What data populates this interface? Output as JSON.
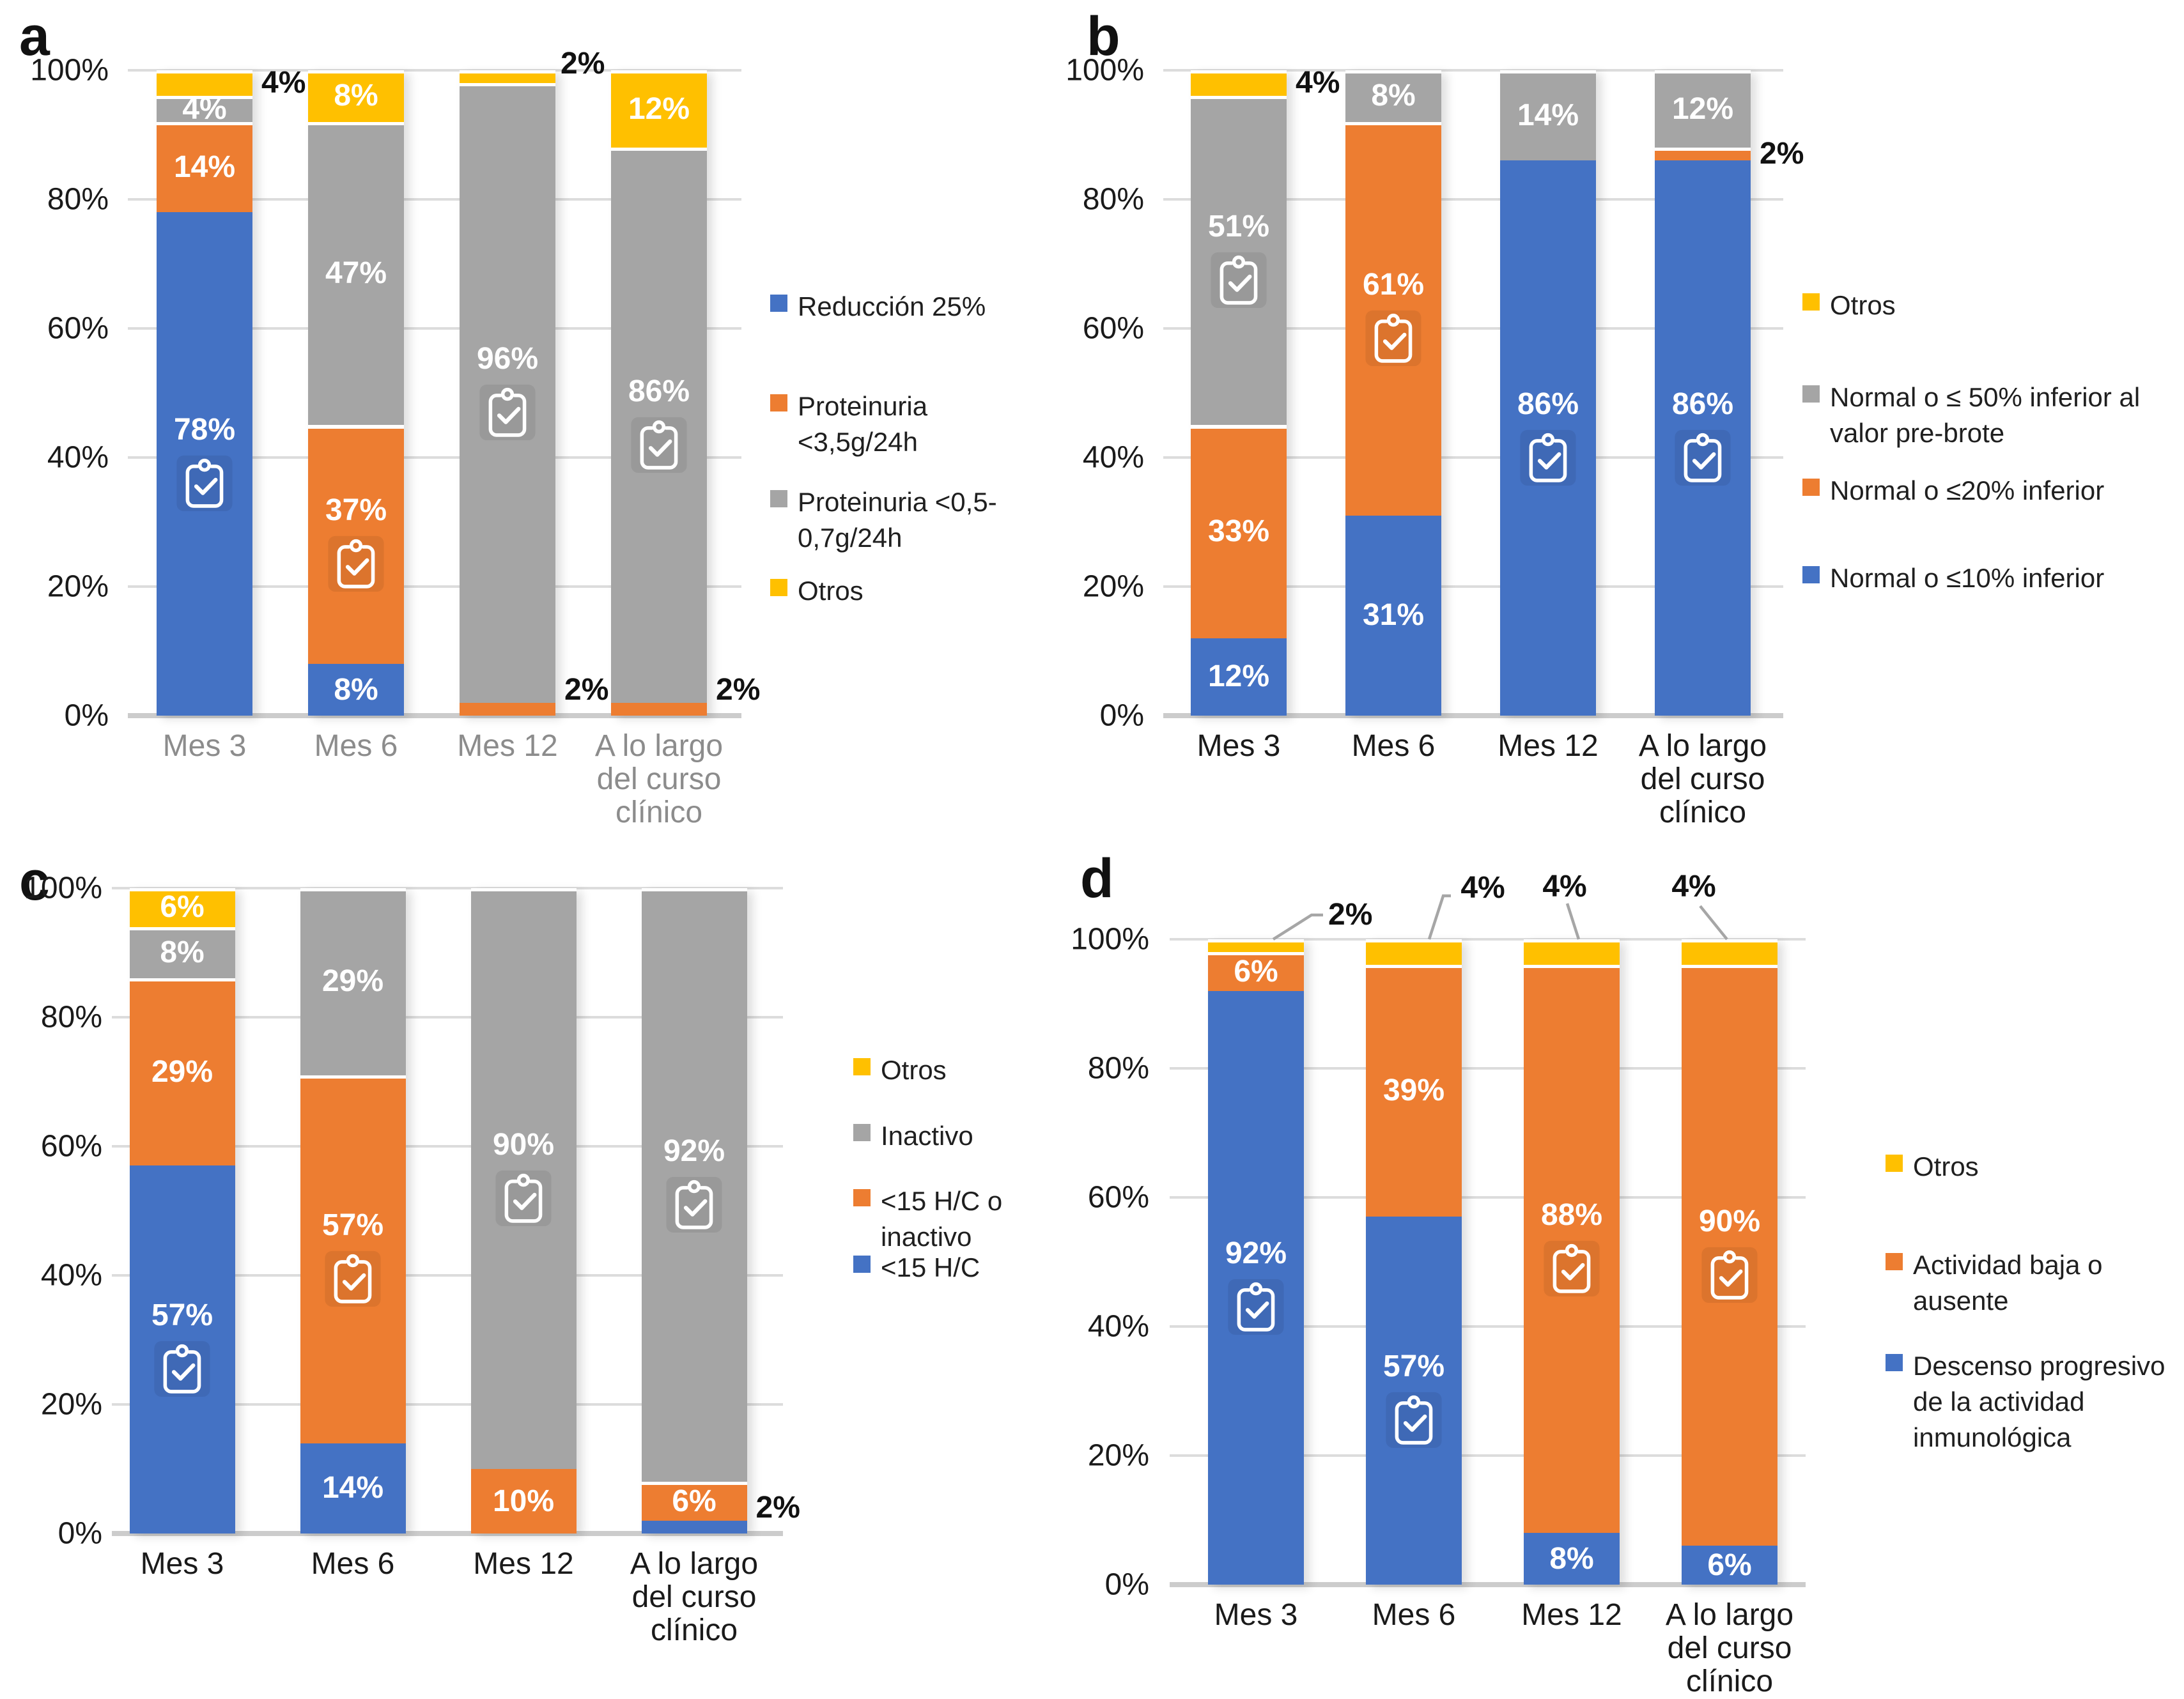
{
  "colors": {
    "blue": "#4472C4",
    "orange": "#ED7D31",
    "gray": "#A5A5A5",
    "yellow": "#FFC000",
    "grid": "#DCDCDC",
    "axis_text": "#1A1A1A",
    "x_text_muted": "#8C8C8C",
    "leader_line": "#A6A6A6",
    "data_label_inside": "#FFFFFF",
    "data_label_outside": "#111111"
  },
  "chart_data": [
    {
      "panel": "a",
      "type": "bar",
      "subtype": "stacked-100-percent",
      "title": "",
      "xlabel": "",
      "ylabel": "",
      "ylim": [
        0,
        100
      ],
      "grid": true,
      "y_ticks": [
        "100%",
        "80%",
        "60%",
        "40%",
        "20%",
        "0%"
      ],
      "categories": [
        "Mes 3",
        "Mes 6",
        "Mes 12",
        "A lo largo del curso clínico"
      ],
      "category_lines": [
        [
          "Mes 3"
        ],
        [
          "Mes 6"
        ],
        [
          "Mes 12"
        ],
        [
          "A lo largo",
          "del curso",
          "clínico"
        ]
      ],
      "x_label_style": "muted",
      "series": [
        {
          "name": "Reducción 25%",
          "color_key": "blue",
          "values": [
            78,
            8,
            0,
            0
          ],
          "labels": [
            "78%",
            "8%",
            "",
            ""
          ],
          "label_modes": [
            "inside-icon",
            "inside",
            null,
            null
          ]
        },
        {
          "name": "Proteinuria <3,5g/24h",
          "color_key": "orange",
          "values": [
            14,
            37,
            2,
            2
          ],
          "labels": [
            "14%",
            "37%",
            "2%",
            "2%"
          ],
          "label_modes": [
            "inside",
            "inside-icon",
            "right",
            "right"
          ]
        },
        {
          "name": "Proteinuria <0,5-0,7g/24h",
          "color_key": "gray",
          "values": [
            4,
            47,
            96,
            86
          ],
          "labels": [
            "4%",
            "47%",
            "96%",
            "86%"
          ],
          "label_modes": [
            "inside",
            "inside",
            "inside-icon",
            "inside-icon"
          ]
        },
        {
          "name": "Otros",
          "color_key": "yellow",
          "values": [
            4,
            8,
            2,
            12
          ],
          "labels": [
            "4%",
            "8%",
            "2%",
            "12%"
          ],
          "label_modes": [
            "right",
            "inside",
            "top",
            "inside"
          ]
        }
      ],
      "legend": {
        "position": "right",
        "entries": [
          {
            "color_key": "blue",
            "lines": [
              "Reducción 25%"
            ]
          },
          {
            "color_key": "orange",
            "lines": [
              "Proteinuria",
              "<3,5g/24h"
            ]
          },
          {
            "color_key": "gray",
            "lines": [
              "Proteinuria <0,5-",
              "0,7g/24h"
            ]
          },
          {
            "color_key": "yellow",
            "lines": [
              "Otros"
            ]
          }
        ]
      }
    },
    {
      "panel": "b",
      "type": "bar",
      "subtype": "stacked-100-percent",
      "title": "",
      "xlabel": "",
      "ylabel": "",
      "ylim": [
        0,
        100
      ],
      "grid": true,
      "y_ticks": [
        "100%",
        "80%",
        "60%",
        "40%",
        "20%",
        "0%"
      ],
      "categories": [
        "Mes 3",
        "Mes 6",
        "Mes 12",
        "A lo largo del curso clínico"
      ],
      "category_lines": [
        [
          "Mes 3"
        ],
        [
          "Mes 6"
        ],
        [
          "Mes 12"
        ],
        [
          "A lo largo",
          "del curso",
          "clínico"
        ]
      ],
      "x_label_style": "dark",
      "series": [
        {
          "name": "Normal o ≤10% inferior",
          "color_key": "blue",
          "values": [
            12,
            31,
            86,
            86
          ],
          "labels": [
            "12%",
            "31%",
            "86%",
            "86%"
          ],
          "label_modes": [
            "inside",
            "inside",
            "inside-icon",
            "inside-icon"
          ]
        },
        {
          "name": "Normal o ≤20% inferior",
          "color_key": "orange",
          "values": [
            33,
            61,
            0,
            2
          ],
          "labels": [
            "33%",
            "61%",
            "",
            "2%"
          ],
          "label_modes": [
            "inside",
            "inside-icon",
            null,
            "right"
          ]
        },
        {
          "name": "Normal o ≤ 50% inferior al valor pre-brote",
          "color_key": "gray",
          "values": [
            51,
            8,
            14,
            12
          ],
          "labels": [
            "51%",
            "8%",
            "14%",
            "12%"
          ],
          "label_modes": [
            "inside-icon",
            "inside",
            "inside",
            "inside"
          ]
        },
        {
          "name": "Otros",
          "color_key": "yellow",
          "values": [
            4,
            0,
            0,
            0
          ],
          "labels": [
            "4%",
            "",
            "",
            ""
          ],
          "label_modes": [
            "right",
            null,
            null,
            null
          ]
        }
      ],
      "legend": {
        "position": "right",
        "entries": [
          {
            "color_key": "yellow",
            "lines": [
              "Otros"
            ]
          },
          {
            "color_key": "gray",
            "lines": [
              "Normal o ≤ 50% inferior al",
              "valor pre-brote"
            ]
          },
          {
            "color_key": "orange",
            "lines": [
              "Normal o ≤20% inferior"
            ]
          },
          {
            "color_key": "blue",
            "lines": [
              "Normal o ≤10% inferior"
            ]
          }
        ]
      }
    },
    {
      "panel": "c",
      "type": "bar",
      "subtype": "stacked-100-percent",
      "title": "",
      "xlabel": "",
      "ylabel": "",
      "ylim": [
        0,
        100
      ],
      "grid": true,
      "y_ticks": [
        "100%",
        "80%",
        "60%",
        "40%",
        "20%",
        "0%"
      ],
      "categories": [
        "Mes 3",
        "Mes 6",
        "Mes 12",
        "A lo largo del curso clínico"
      ],
      "category_lines": [
        [
          "Mes 3"
        ],
        [
          "Mes 6"
        ],
        [
          "Mes 12"
        ],
        [
          "A lo largo",
          "del curso",
          "clínico"
        ]
      ],
      "x_label_style": "dark",
      "series": [
        {
          "name": "<15 H/C",
          "color_key": "blue",
          "values": [
            57,
            14,
            0,
            2
          ],
          "labels": [
            "57%",
            "14%",
            "",
            "2%"
          ],
          "label_modes": [
            "inside-icon",
            "inside",
            null,
            "right"
          ]
        },
        {
          "name": "<15 H/C o inactivo",
          "color_key": "orange",
          "values": [
            29,
            57,
            10,
            6
          ],
          "labels": [
            "29%",
            "57%",
            "10%",
            "6%"
          ],
          "label_modes": [
            "inside",
            "inside-icon",
            "inside",
            "inside"
          ]
        },
        {
          "name": "Inactivo",
          "color_key": "gray",
          "values": [
            8,
            29,
            90,
            92
          ],
          "labels": [
            "8%",
            "29%",
            "90%",
            "92%"
          ],
          "label_modes": [
            "inside",
            "inside",
            "inside-icon",
            "inside-icon"
          ]
        },
        {
          "name": "Otros",
          "color_key": "yellow",
          "values": [
            6,
            0,
            0,
            0
          ],
          "labels": [
            "6%",
            "",
            "",
            ""
          ],
          "label_modes": [
            "inside",
            null,
            null,
            null
          ]
        }
      ],
      "legend": {
        "position": "right",
        "entries": [
          {
            "color_key": "yellow",
            "lines": [
              "Otros"
            ]
          },
          {
            "color_key": "gray",
            "lines": [
              "Inactivo"
            ]
          },
          {
            "color_key": "orange",
            "lines": [
              "<15 H/C o",
              "inactivo"
            ]
          },
          {
            "color_key": "blue",
            "lines": [
              "<15 H/C"
            ]
          }
        ]
      }
    },
    {
      "panel": "d",
      "type": "bar",
      "subtype": "stacked-100-percent",
      "title": "",
      "xlabel": "",
      "ylabel": "",
      "ylim": [
        0,
        100
      ],
      "grid": true,
      "y_ticks": [
        "100%",
        "80%",
        "60%",
        "40%",
        "20%",
        "0%"
      ],
      "categories": [
        "Mes 3",
        "Mes 6",
        "Mes 12",
        "A lo largo del curso clínico"
      ],
      "category_lines": [
        [
          "Mes 3"
        ],
        [
          "Mes 6"
        ],
        [
          "Mes 12"
        ],
        [
          "A lo largo",
          "del curso",
          "clínico"
        ]
      ],
      "x_label_style": "dark",
      "series": [
        {
          "name": "Descenso progresivo de la actividad inmunológica",
          "color_key": "blue",
          "values": [
            92,
            57,
            8,
            6
          ],
          "labels": [
            "92%",
            "57%",
            "8%",
            "6%"
          ],
          "label_modes": [
            "inside-icon",
            "inside-icon",
            "inside",
            "inside"
          ]
        },
        {
          "name": "Actividad baja o ausente",
          "color_key": "orange",
          "values": [
            6,
            39,
            88,
            90
          ],
          "labels": [
            "6%",
            "39%",
            "88%",
            "90%"
          ],
          "label_modes": [
            "inside",
            "inside",
            "inside-icon",
            "inside-icon"
          ]
        },
        {
          "name": "Otros",
          "color_key": "yellow",
          "values": [
            2,
            4,
            4,
            4
          ],
          "labels": [
            "2%",
            "4%",
            "4%",
            "4%"
          ],
          "label_modes": [
            "callout",
            "callout",
            "callout",
            "callout"
          ]
        }
      ],
      "legend": {
        "position": "right",
        "entries": [
          {
            "color_key": "yellow",
            "lines": [
              "Otros"
            ]
          },
          {
            "color_key": "orange",
            "lines": [
              "Actividad baja o",
              "ausente"
            ]
          },
          {
            "color_key": "blue",
            "lines": [
              "Descenso progresivo",
              "de la actividad",
              "inmunológica"
            ]
          }
        ]
      }
    }
  ]
}
